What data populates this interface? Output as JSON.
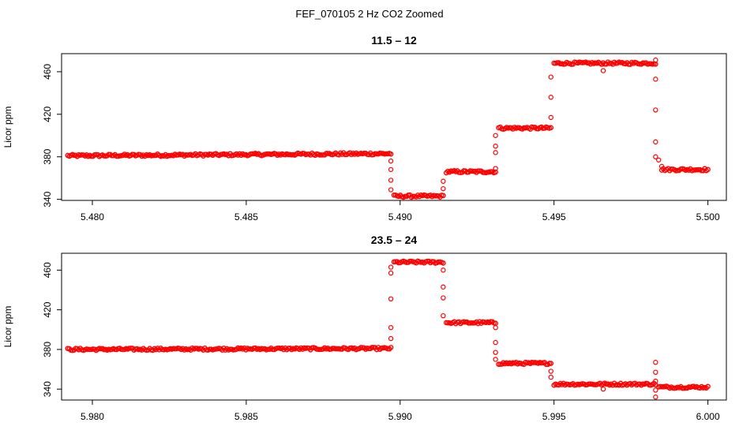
{
  "figure": {
    "title": "FEF_070105  2 Hz CO2 Zoomed"
  },
  "chart_data": [
    {
      "type": "scatter",
      "title": "11.5 – 12",
      "xlabel": "",
      "ylabel": "Licor ppm",
      "xlim": [
        5.479,
        5.5006
      ],
      "ylim": [
        339,
        477
      ],
      "xticks": [
        "5.480",
        "5.485",
        "5.490",
        "5.495",
        "5.500"
      ],
      "yticks": [
        "340",
        "380",
        "420",
        "460"
      ],
      "marker_color": "#ff0000",
      "segments": [
        {
          "x_start": 5.4792,
          "x_end": 5.4897,
          "y_start": 381,
          "y_end": 383
        },
        {
          "x_start": 5.4898,
          "x_end": 5.4914,
          "y_start": 343,
          "y_end": 343
        },
        {
          "x_start": 5.4915,
          "x_end": 5.4931,
          "y_start": 366,
          "y_end": 366
        },
        {
          "x_start": 5.4932,
          "x_end": 5.4949,
          "y_start": 407,
          "y_end": 407
        },
        {
          "x_start": 5.495,
          "x_end": 5.4983,
          "y_start": 468,
          "y_end": 468
        },
        {
          "x_start": 5.4985,
          "x_end": 5.5,
          "y_start": 368,
          "y_end": 368
        }
      ],
      "transition_points": [
        [
          5.4897,
          376
        ],
        [
          5.4897,
          368
        ],
        [
          5.4897,
          358
        ],
        [
          5.4897,
          349
        ],
        [
          5.4914,
          350
        ],
        [
          5.4914,
          357
        ],
        [
          5.4931,
          369
        ],
        [
          5.4931,
          384
        ],
        [
          5.4931,
          390
        ],
        [
          5.4931,
          400
        ],
        [
          5.4949,
          417
        ],
        [
          5.4949,
          436
        ],
        [
          5.4949,
          455
        ],
        [
          5.4966,
          461
        ],
        [
          5.4983,
          471
        ],
        [
          5.4983,
          453
        ],
        [
          5.4983,
          424
        ],
        [
          5.4983,
          394
        ],
        [
          5.4983,
          380
        ],
        [
          5.4984,
          377
        ],
        [
          5.4985,
          371
        ]
      ]
    },
    {
      "type": "scatter",
      "title": "23.5 – 24",
      "xlabel": "",
      "ylabel": "Licor ppm",
      "xlim": [
        5.979,
        6.0006
      ],
      "ylim": [
        329,
        477
      ],
      "xticks": [
        "5.980",
        "5.985",
        "5.990",
        "5.995",
        "6.000"
      ],
      "yticks": [
        "340",
        "380",
        "420",
        "460"
      ],
      "marker_color": "#ff0000",
      "segments": [
        {
          "x_start": 5.9792,
          "x_end": 5.9897,
          "y_start": 380,
          "y_end": 381
        },
        {
          "x_start": 5.9898,
          "x_end": 5.9914,
          "y_start": 468,
          "y_end": 468
        },
        {
          "x_start": 5.9915,
          "x_end": 5.9931,
          "y_start": 407,
          "y_end": 407
        },
        {
          "x_start": 5.9932,
          "x_end": 5.9949,
          "y_start": 366,
          "y_end": 366
        },
        {
          "x_start": 5.995,
          "x_end": 5.9983,
          "y_start": 345,
          "y_end": 345
        },
        {
          "x_start": 5.9984,
          "x_end": 6.0,
          "y_start": 342,
          "y_end": 342
        }
      ],
      "transition_points": [
        [
          5.9897,
          391
        ],
        [
          5.9897,
          402
        ],
        [
          5.9897,
          431
        ],
        [
          5.9897,
          457
        ],
        [
          5.9897,
          463
        ],
        [
          5.9914,
          460
        ],
        [
          5.9914,
          443
        ],
        [
          5.9914,
          432
        ],
        [
          5.9914,
          414
        ],
        [
          5.9931,
          402
        ],
        [
          5.9931,
          387
        ],
        [
          5.9931,
          377
        ],
        [
          5.9931,
          370
        ],
        [
          5.9949,
          358
        ],
        [
          5.9949,
          352
        ],
        [
          5.9966,
          340
        ],
        [
          5.9983,
          367
        ],
        [
          5.9983,
          357
        ],
        [
          5.9983,
          348
        ],
        [
          5.9983,
          339
        ],
        [
          5.9983,
          332
        ]
      ]
    }
  ]
}
